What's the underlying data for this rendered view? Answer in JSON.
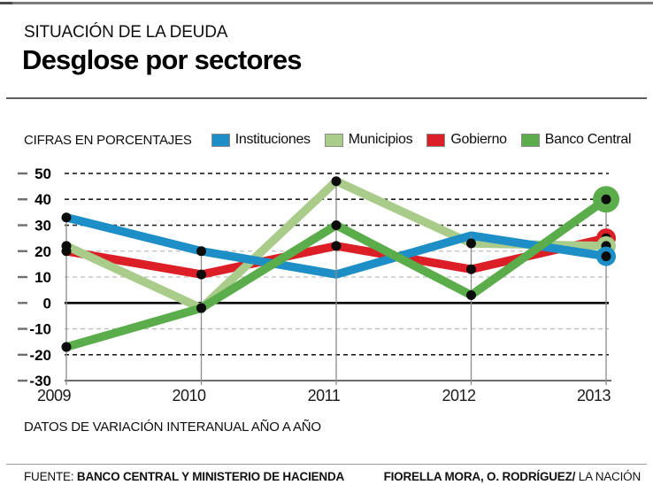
{
  "header": {
    "kicker": "SITUACIÓN DE LA DEUDA",
    "title": "Desglose por sectores"
  },
  "legend_caption": "CIFRAS EN PORCENTAJES",
  "chart_data": {
    "type": "line",
    "title": "Desglose por sectores",
    "x": [
      "2009",
      "2010",
      "2011",
      "2012",
      "2013"
    ],
    "series": [
      {
        "name": "Instituciones",
        "color": "#1d8fc6",
        "values": [
          33,
          20,
          11,
          26,
          18
        ],
        "markers": [
          true,
          true,
          false,
          false,
          true
        ],
        "z": 3
      },
      {
        "name": "Municipios",
        "color": "#a9cc8b",
        "values": [
          22,
          -2,
          47,
          23,
          22
        ],
        "markers": [
          true,
          true,
          true,
          true,
          true
        ],
        "z": 2
      },
      {
        "name": "Gobierno",
        "color": "#dc1f26",
        "values": [
          20,
          11,
          22,
          13,
          25
        ],
        "markers": [
          true,
          true,
          true,
          true,
          true
        ],
        "z": 1
      },
      {
        "name": "Banco Central",
        "color": "#5aad4a",
        "values": [
          -17,
          -2,
          30,
          3,
          40
        ],
        "markers": [
          true,
          true,
          true,
          true,
          true
        ],
        "z": 4
      }
    ],
    "ylim": [
      -30,
      50
    ],
    "yticks": [
      50,
      40,
      30,
      20,
      10,
      0,
      -10,
      -20,
      -30
    ],
    "units": "percent",
    "grid": true,
    "legend_position": "top"
  },
  "note": "DATOS DE VARIACIÓN INTERANUAL AÑO A AÑO",
  "footer": {
    "source_label": "FUENTE: ",
    "source": "BANCO CENTRAL Y MINISTERIO DE HACIENDA",
    "credits_bold": "FIORELLA MORA, O. RODRÍGUEZ/",
    "credits_rest": " LA NACIÓN"
  }
}
